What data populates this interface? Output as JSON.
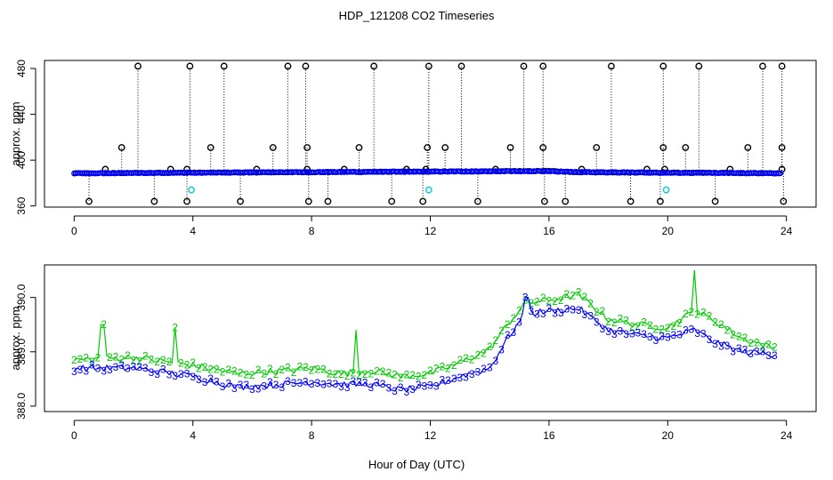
{
  "title": "HDP_121208  CO2 Timeseries",
  "xlabel": "Hour of Day (UTC)",
  "colors": {
    "black": "#000000",
    "blue": "#0000ff",
    "green": "#00cc00",
    "cyan": "#00cccc",
    "frame": "#000000"
  },
  "chart_data": [
    {
      "type": "scatter",
      "name": "top-panel",
      "ylabel": "approx. ppm",
      "xlim": [
        -1,
        25
      ],
      "ylim": [
        359,
        487
      ],
      "xticks": [
        0,
        4,
        8,
        12,
        16,
        20,
        24
      ],
      "yticks": [
        360,
        400,
        440,
        480
      ],
      "x_tick_labels": [
        "0",
        "4",
        "8",
        "12",
        "16",
        "20",
        "24"
      ],
      "y_tick_labels": [
        "360",
        "400",
        "440",
        "480"
      ],
      "baseline": {
        "hour_start": 0.0,
        "hour_end": 23.85,
        "levels": [
          [
            0,
            388.5
          ],
          [
            15.9,
            390.5
          ],
          [
            17,
            389.5
          ],
          [
            23.85,
            388.5
          ]
        ]
      },
      "spikes_high": [
        2.15,
        3.9,
        5.05,
        7.2,
        7.8,
        10.1,
        11.95,
        13.05,
        15.15,
        15.8,
        18.1,
        19.85,
        21.05,
        23.2,
        23.85
      ],
      "spikes_mid": [
        1.6,
        4.6,
        6.7,
        7.85,
        9.6,
        11.9,
        12.5,
        14.7,
        15.8,
        17.6,
        19.85,
        20.6,
        22.7,
        23.85
      ],
      "spikes_low": [
        0.5,
        2.7,
        3.8,
        5.6,
        7.9,
        8.55,
        10.7,
        11.75,
        13.6,
        15.85,
        16.55,
        18.75,
        19.75,
        21.6,
        23.9
      ],
      "bumps": [
        1.05,
        3.25,
        3.8,
        6.15,
        7.85,
        9.1,
        11.2,
        11.85,
        14.2,
        17.1,
        19.3,
        19.9,
        22.1,
        23.85
      ],
      "cyan_points": [
        [
          3.95,
          374
        ],
        [
          11.95,
          374
        ],
        [
          19.95,
          374
        ]
      ],
      "high_value": 482,
      "mid_value": 411,
      "low_value": 364,
      "bump_value": 392
    },
    {
      "type": "line",
      "name": "bottom-panel",
      "ylabel": "approx. ppm",
      "xlim": [
        -1,
        25
      ],
      "ylim": [
        387.9,
        390.6
      ],
      "xticks": [
        0,
        4,
        8,
        12,
        16,
        20,
        24
      ],
      "yticks": [
        388.0,
        389.0,
        390.0
      ],
      "x_tick_labels": [
        "0",
        "4",
        "8",
        "12",
        "16",
        "20",
        "24"
      ],
      "y_tick_labels": [
        "388.0",
        "389.0",
        "390.0"
      ],
      "series": [
        {
          "name": "2",
          "marker": "2",
          "color": "#00cc00",
          "anchors": [
            [
              0,
              388.85
            ],
            [
              2,
              388.9
            ],
            [
              4,
              388.75
            ],
            [
              5.5,
              388.6
            ],
            [
              7,
              388.65
            ],
            [
              8,
              388.7
            ],
            [
              9,
              388.6
            ],
            [
              10,
              388.65
            ],
            [
              11,
              388.55
            ],
            [
              12,
              388.6
            ],
            [
              13,
              388.8
            ],
            [
              14,
              389.05
            ],
            [
              14.6,
              389.5
            ],
            [
              15.2,
              389.9
            ],
            [
              16,
              389.95
            ],
            [
              17,
              390.05
            ],
            [
              18,
              389.6
            ],
            [
              19,
              389.5
            ],
            [
              20,
              389.45
            ],
            [
              20.9,
              389.75
            ],
            [
              21.5,
              389.6
            ],
            [
              22.5,
              389.25
            ],
            [
              23.7,
              389.05
            ]
          ],
          "spikes": [
            [
              0.95,
              389.5
            ],
            [
              3.4,
              389.45
            ],
            [
              9.5,
              389.4
            ],
            [
              20.9,
              390.5
            ]
          ]
        },
        {
          "name": "3",
          "marker": "3",
          "color": "#0000ff",
          "anchors": [
            [
              0,
              388.7
            ],
            [
              2,
              388.7
            ],
            [
              4,
              388.55
            ],
            [
              5.5,
              388.35
            ],
            [
              7,
              388.4
            ],
            [
              8,
              388.45
            ],
            [
              9,
              388.4
            ],
            [
              10,
              388.4
            ],
            [
              11,
              388.3
            ],
            [
              12,
              388.35
            ],
            [
              13,
              388.55
            ],
            [
              14,
              388.7
            ],
            [
              14.6,
              389.25
            ],
            [
              15.2,
              389.7
            ],
            [
              16,
              389.75
            ],
            [
              17,
              389.8
            ],
            [
              18,
              389.4
            ],
            [
              19,
              389.3
            ],
            [
              20,
              389.25
            ],
            [
              20.9,
              389.4
            ],
            [
              21.5,
              389.2
            ],
            [
              22.5,
              389.0
            ],
            [
              23.7,
              388.95
            ]
          ],
          "spikes": [
            [
              15.25,
              390.0
            ]
          ]
        }
      ]
    }
  ]
}
